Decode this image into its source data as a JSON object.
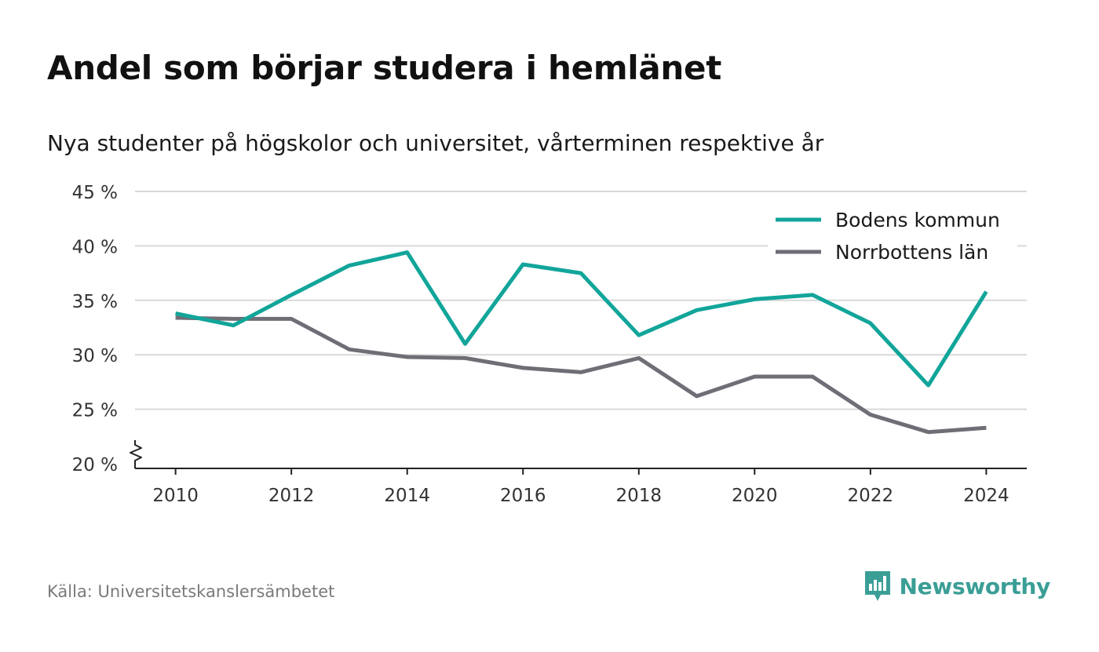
{
  "title": "Andel som börjar studera i hemlänet",
  "subtitle": "Nya studenter på högskolor och universitet, vårterminen respektive år",
  "source": "Källa: Universitetskanslersämbetet",
  "brand": "Newsworthy",
  "colors": {
    "accent": "#12a59a",
    "secondary": "#6f6e76",
    "grid": "#d9d9d9",
    "brand": "#3b9e96"
  },
  "chart_data": {
    "type": "line",
    "x": [
      2010,
      2011,
      2012,
      2013,
      2014,
      2015,
      2016,
      2017,
      2018,
      2019,
      2020,
      2021,
      2022,
      2023,
      2024
    ],
    "series": [
      {
        "name": "Bodens kommun",
        "color": "#12a59a",
        "values": [
          33.8,
          32.7,
          35.5,
          38.2,
          39.4,
          31.0,
          38.3,
          37.5,
          31.8,
          34.1,
          35.1,
          35.5,
          32.9,
          27.2,
          35.8
        ]
      },
      {
        "name": "Norrbottens län",
        "color": "#6f6e76",
        "values": [
          33.4,
          33.3,
          33.3,
          30.5,
          29.8,
          29.7,
          28.8,
          28.4,
          29.7,
          26.2,
          28.0,
          28.0,
          24.5,
          22.9,
          23.3
        ]
      }
    ],
    "xticks": [
      2010,
      2012,
      2014,
      2016,
      2018,
      2020,
      2022,
      2024
    ],
    "xtick_labels": [
      "2010",
      "2012",
      "2014",
      "2016",
      "2018",
      "2020",
      "2022",
      "2024"
    ],
    "yticks": [
      20,
      25,
      30,
      35,
      40,
      45
    ],
    "ytick_labels": [
      "20 %",
      "25 %",
      "30 %",
      "35 %",
      "40 %",
      "45 %"
    ],
    "ylim": [
      20,
      45
    ],
    "xlim": [
      2009.3,
      2024.7
    ],
    "y_axis_break": true,
    "grid": true,
    "legend_position": "top-right"
  }
}
